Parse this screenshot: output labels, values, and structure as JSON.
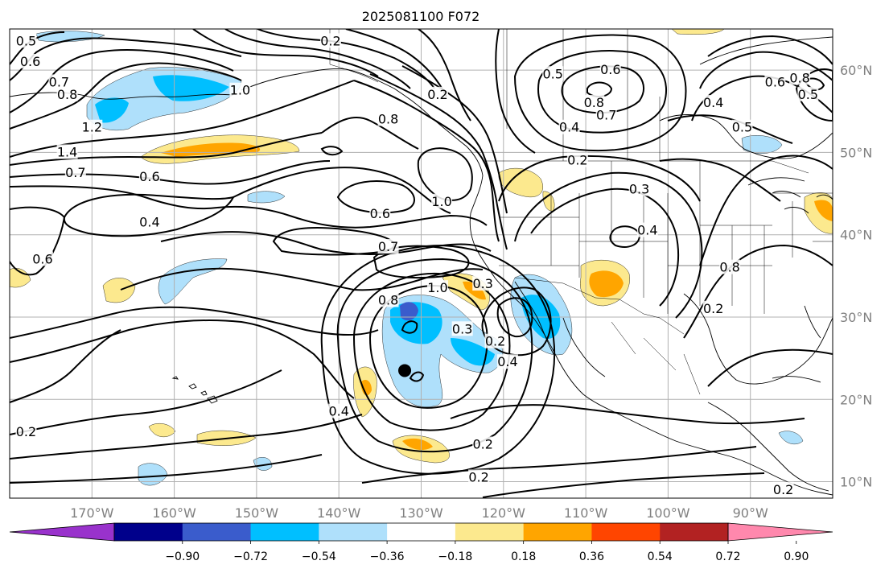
{
  "map": {
    "title": "2025081100 F072",
    "lon_ticks": [
      {
        "lon": -170,
        "label": "170°W"
      },
      {
        "lon": -160,
        "label": "160°W"
      },
      {
        "lon": -150,
        "label": "150°W"
      },
      {
        "lon": -140,
        "label": "140°W"
      },
      {
        "lon": -130,
        "label": "130°W"
      },
      {
        "lon": -120,
        "label": "120°W"
      },
      {
        "lon": -110,
        "label": "110°W"
      },
      {
        "lon": -100,
        "label": "100°W"
      },
      {
        "lon": -90,
        "label": "90°W"
      }
    ],
    "lat_ticks": [
      {
        "lat": 60,
        "label": "60°N"
      },
      {
        "lat": 50,
        "label": "50°N"
      },
      {
        "lat": 40,
        "label": "40°N"
      },
      {
        "lat": 30,
        "label": "30°N"
      },
      {
        "lat": 20,
        "label": "20°N"
      },
      {
        "lat": 10,
        "label": "10°N"
      }
    ],
    "extent": {
      "lon_min": -180,
      "lon_max": -80,
      "lat_min": 8,
      "lat_max": 65
    },
    "gridlines": true,
    "marker": {
      "lon": -132,
      "lat": 23.5,
      "color": "#000000"
    },
    "contour_labels": [
      {
        "text": "0.2",
        "lon": -141,
        "lat": 63.5
      },
      {
        "text": "0.6",
        "lon": -177.5,
        "lat": 61
      },
      {
        "text": "0.5",
        "lon": -178,
        "lat": 63.5
      },
      {
        "text": "0.7",
        "lon": -174,
        "lat": 58.5
      },
      {
        "text": "0.8",
        "lon": -173,
        "lat": 57
      },
      {
        "text": "1.2",
        "lon": -170,
        "lat": 53
      },
      {
        "text": "1.4",
        "lon": -173,
        "lat": 50
      },
      {
        "text": "0.7",
        "lon": -172,
        "lat": 47.5
      },
      {
        "text": "0.6",
        "lon": -163,
        "lat": 47
      },
      {
        "text": "0.4",
        "lon": -163,
        "lat": 41.5
      },
      {
        "text": "0.6",
        "lon": -176,
        "lat": 37
      },
      {
        "text": "0.2",
        "lon": -178,
        "lat": 16
      },
      {
        "text": "1.0",
        "lon": -152,
        "lat": 57.5
      },
      {
        "text": "0.8",
        "lon": -134,
        "lat": 54
      },
      {
        "text": "0.2",
        "lon": -128,
        "lat": 57
      },
      {
        "text": "1.0",
        "lon": -127.5,
        "lat": 44
      },
      {
        "text": "0.6",
        "lon": -135,
        "lat": 42.5
      },
      {
        "text": "0.7",
        "lon": -134,
        "lat": 38.5
      },
      {
        "text": "1.0",
        "lon": -128,
        "lat": 33.5
      },
      {
        "text": "0.8",
        "lon": -134,
        "lat": 32
      },
      {
        "text": "0.3",
        "lon": -125,
        "lat": 28.5
      },
      {
        "text": "0.3",
        "lon": -122.5,
        "lat": 34
      },
      {
        "text": "0.2",
        "lon": -121,
        "lat": 27
      },
      {
        "text": "0.4",
        "lon": -119.5,
        "lat": 24.5
      },
      {
        "text": "0.4",
        "lon": -140,
        "lat": 18.5
      },
      {
        "text": "0.2",
        "lon": -122.5,
        "lat": 14.5
      },
      {
        "text": "0.2",
        "lon": -123,
        "lat": 10.5
      },
      {
        "text": "0.5",
        "lon": -114,
        "lat": 59.5
      },
      {
        "text": "0.6",
        "lon": -107,
        "lat": 60
      },
      {
        "text": "0.8",
        "lon": -109,
        "lat": 56
      },
      {
        "text": "0.7",
        "lon": -107.5,
        "lat": 54.5
      },
      {
        "text": "0.4",
        "lon": -112,
        "lat": 53
      },
      {
        "text": "0.2",
        "lon": -111,
        "lat": 49
      },
      {
        "text": "0.3",
        "lon": -103.5,
        "lat": 45.5
      },
      {
        "text": "0.4",
        "lon": -102.5,
        "lat": 40.5
      },
      {
        "text": "0.4",
        "lon": -94.5,
        "lat": 56
      },
      {
        "text": "0.5",
        "lon": -91,
        "lat": 53
      },
      {
        "text": "0.8",
        "lon": -84,
        "lat": 59
      },
      {
        "text": "0.6",
        "lon": -87,
        "lat": 58.5
      },
      {
        "text": "0.5",
        "lon": -83,
        "lat": 57
      },
      {
        "text": "0.8",
        "lon": -92.5,
        "lat": 36
      },
      {
        "text": "0.2",
        "lon": -94.5,
        "lat": 31
      },
      {
        "text": "0.2",
        "lon": -86,
        "lat": 9
      }
    ]
  },
  "colorbar": {
    "colors": [
      "#9932cc",
      "#00008b",
      "#3a5ccc",
      "#00bfff",
      "#afe0fb",
      "#ffffff",
      "#fce98e",
      "#ffa500",
      "#ff4500",
      "#b22222",
      "#ff88ad"
    ],
    "tick_labels": [
      "−0.90",
      "−0.72",
      "−0.54",
      "−0.36",
      "−0.18",
      "0.18",
      "0.36",
      "0.54",
      "0.72",
      "0.90"
    ],
    "extend": "both"
  }
}
